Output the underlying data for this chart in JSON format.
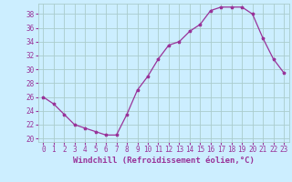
{
  "x": [
    0,
    1,
    2,
    3,
    4,
    5,
    6,
    7,
    8,
    9,
    10,
    11,
    12,
    13,
    14,
    15,
    16,
    17,
    18,
    19,
    20,
    21,
    22,
    23
  ],
  "y": [
    26,
    25,
    23.5,
    22,
    21.5,
    21,
    20.5,
    20.5,
    23.5,
    27,
    29,
    31.5,
    33.5,
    34,
    35.5,
    36.5,
    38.5,
    39,
    39,
    39,
    38,
    34.5,
    31.5,
    29.5
  ],
  "line_color": "#993399",
  "marker": "*",
  "bg_color": "#cceeff",
  "grid_color": "#aacccc",
  "xlabel": "Windchill (Refroidissement éolien,°C)",
  "ylabel_ticks": [
    20,
    22,
    24,
    26,
    28,
    30,
    32,
    34,
    36,
    38
  ],
  "ylim": [
    19.5,
    39.5
  ],
  "xlim": [
    -0.5,
    23.5
  ],
  "xtick_labels": [
    "0",
    "1",
    "2",
    "3",
    "4",
    "5",
    "6",
    "7",
    "8",
    "9",
    "10",
    "11",
    "12",
    "13",
    "14",
    "15",
    "16",
    "17",
    "18",
    "19",
    "20",
    "21",
    "22",
    "23"
  ],
  "font_color": "#993399",
  "font_name": "monospace",
  "xlabel_fontsize": 6.5,
  "tick_fontsize": 5.5
}
